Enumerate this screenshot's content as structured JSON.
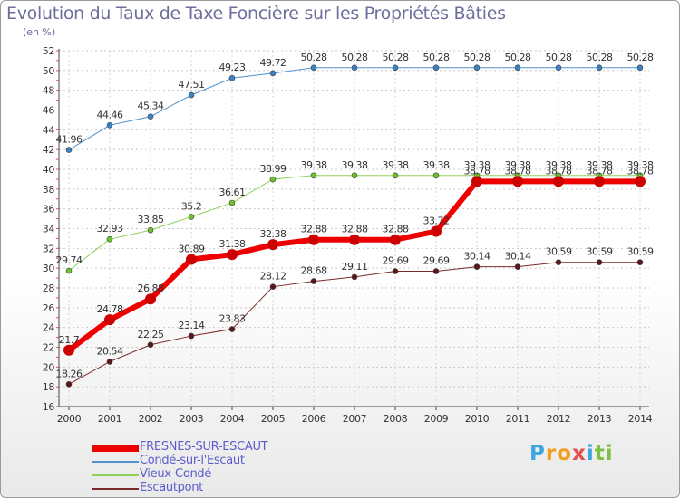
{
  "title": "Evolution du Taux de Taxe Foncière sur les Propriétés Bâties",
  "subtitle": "(en %)",
  "logo": {
    "text": "Proxiti",
    "colors": [
      "#3ea6e0",
      "#f0a020",
      "#f0a020",
      "#e25050",
      "#3ea6e0",
      "#7cc040",
      "#7cc040"
    ]
  },
  "chart_data": {
    "type": "line",
    "title": "Evolution du Taux de Taxe Foncière sur les Propriétés Bâties",
    "ylabel": "(en %)",
    "xlabel": "",
    "ylim": [
      16,
      52
    ],
    "yticks": [
      16,
      18,
      20,
      22,
      24,
      26,
      28,
      30,
      32,
      34,
      36,
      38,
      40,
      42,
      44,
      46,
      48,
      50,
      52
    ],
    "categories": [
      "2000",
      "2001",
      "2002",
      "2003",
      "2004",
      "2005",
      "2006",
      "2007",
      "2008",
      "2009",
      "2010",
      "2011",
      "2012",
      "2013",
      "2014"
    ],
    "series": [
      {
        "name": "Condé-sur-l'Escaut",
        "color": "#4f92cc",
        "marker": "#3a82c4",
        "width": 1,
        "values": [
          41.96,
          44.46,
          45.34,
          47.51,
          49.23,
          49.72,
          50.28,
          50.28,
          50.28,
          50.28,
          50.28,
          50.28,
          50.28,
          50.28,
          50.28
        ],
        "labels": [
          "41.96",
          "44.46",
          "45.34",
          "47.51",
          "49.23",
          "49.72",
          "50.28",
          "50.28",
          "50.28",
          "50.28",
          "50.28",
          "50.28",
          "50.28",
          "50.28",
          "50.28"
        ]
      },
      {
        "name": "Vieux-Condé",
        "color": "#8fd25a",
        "marker": "#6cc22e",
        "width": 1,
        "values": [
          29.74,
          32.93,
          33.85,
          35.2,
          36.61,
          38.99,
          39.38,
          39.38,
          39.38,
          39.38,
          39.38,
          39.38,
          39.38,
          39.38,
          39.38
        ],
        "labels": [
          "29.74",
          "32.93",
          "33.85",
          "35.2",
          "36.61",
          "38.99",
          "39.38",
          "39.38",
          "39.38",
          "39.38",
          "39.38",
          "39.38",
          "39.38",
          "39.38",
          "39.38"
        ]
      },
      {
        "name": "Escautpont",
        "color": "#7a2a2a",
        "marker": "#5a1818",
        "width": 1,
        "values": [
          18.26,
          20.54,
          22.25,
          23.14,
          23.83,
          28.12,
          28.68,
          29.11,
          29.69,
          29.69,
          30.14,
          30.14,
          30.59,
          30.59,
          30.59
        ],
        "labels": [
          "18.26",
          "20.54",
          "22.25",
          "23.14",
          "23.83",
          "28.12",
          "28.68",
          "29.11",
          "29.69",
          "29.69",
          "30.14",
          "30.14",
          "30.59",
          "30.59",
          "30.59"
        ]
      },
      {
        "name": "FRESNES-SUR-ESCAUT",
        "color": "#ee0000",
        "marker": "#cc0000",
        "width": 6,
        "values": [
          21.7,
          24.78,
          26.88,
          30.89,
          31.38,
          32.38,
          32.88,
          32.88,
          32.88,
          33.72,
          38.78,
          38.78,
          38.78,
          38.78,
          38.78
        ],
        "labels": [
          "21.7",
          "24.78",
          "26.88",
          "30.89",
          "31.38",
          "32.38",
          "32.88",
          "32.88",
          "32.88",
          "33.72",
          "38.78",
          "38.78",
          "38.78",
          "38.78",
          "38.78"
        ]
      }
    ],
    "legend": [
      {
        "name": "FRESNES-SUR-ESCAUT",
        "color": "#ee0000",
        "thick": true
      },
      {
        "name": "Condé-sur-l'Escaut",
        "color": "#4f92cc",
        "thick": false
      },
      {
        "name": "Vieux-Condé",
        "color": "#8fd25a",
        "thick": false
      },
      {
        "name": "Escautpont",
        "color": "#7a2a2a",
        "thick": false
      }
    ],
    "grid": true,
    "legend_position": "bottom-left"
  }
}
